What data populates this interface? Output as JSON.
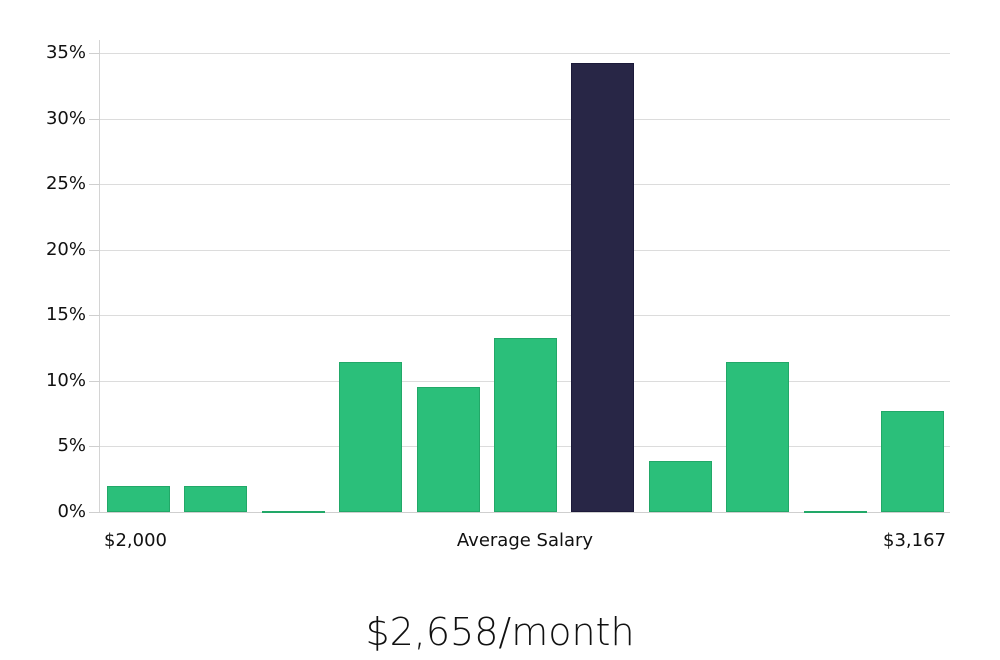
{
  "chart_data": {
    "type": "bar",
    "title": "",
    "xlabel": "Average Salary",
    "ylabel": "",
    "x_range_labels": {
      "min": "$2,000",
      "max": "$3,167"
    },
    "categories": [
      "bin1",
      "bin2",
      "bin3",
      "bin4",
      "bin5",
      "bin6",
      "bin7",
      "bin8",
      "bin9",
      "bin10",
      "bin11"
    ],
    "values": [
      2.0,
      2.0,
      0.0,
      11.4,
      9.5,
      13.3,
      34.2,
      3.9,
      11.4,
      0.0,
      7.7
    ],
    "highlight_index": 6,
    "ylim": [
      0,
      35
    ],
    "yticks": [
      "0%",
      "5%",
      "10%",
      "15%",
      "20%",
      "25%",
      "30%",
      "35%"
    ],
    "grid": true,
    "colors": {
      "bar": "#2bbf7a",
      "bar_border": "#22a868",
      "highlight": "#282646",
      "highlight_border": "#1c1a3a",
      "grid": "#dcdcdc"
    }
  },
  "footer": {
    "average_label": "$2,658/month"
  }
}
